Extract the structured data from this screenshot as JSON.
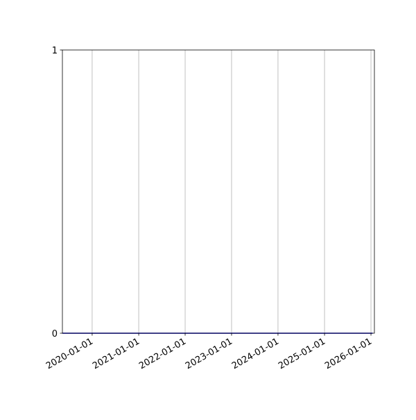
{
  "chart_data": {
    "type": "line",
    "title": "",
    "xlabel": "",
    "ylabel": "",
    "x_axis_type": "date",
    "xlim": [
      "2019-05-12",
      "2026-01-28"
    ],
    "ylim": [
      0,
      1
    ],
    "xticks": [
      "2020-01-01",
      "2021-01-01",
      "2022-01-01",
      "2023-01-01",
      "2024-01-01",
      "2025-01-01",
      "2026-01-01"
    ],
    "yticks": [
      0,
      1
    ],
    "grid": {
      "x": true,
      "y": false
    },
    "series": [
      {
        "x": [
          "2019-05-12",
          "2026-01-14"
        ],
        "y": [
          0,
          0
        ],
        "color": "#0000cc"
      }
    ],
    "colors": {
      "grid": "#b0b0b0",
      "axes": "#000000"
    }
  }
}
